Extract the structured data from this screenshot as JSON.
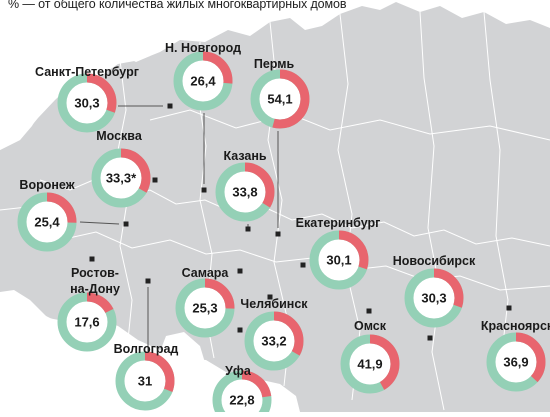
{
  "caption": "% — от общего количества жилых многоквартирных домов",
  "colors": {
    "land": "#d2d3d5",
    "land_border": "#ffffff",
    "water": "#ffffff",
    "ring_main": "#94d0b6",
    "ring_share": "#e8656e",
    "marker": "#222222",
    "leader": "#555555",
    "text": "#1a1a1a"
  },
  "cities": [
    {
      "id": "spb",
      "name": [
        "Санкт-Петербург"
      ],
      "value": "30,3",
      "share": 30.3
    },
    {
      "id": "nnov",
      "name": [
        "Н. Новгород"
      ],
      "value": "26,4",
      "share": 26.4
    },
    {
      "id": "perm",
      "name": [
        "Пермь"
      ],
      "value": "54,1",
      "share": 54.1
    },
    {
      "id": "msk",
      "name": [
        "Москва"
      ],
      "value": "33,3*",
      "share": 33.3
    },
    {
      "id": "kazan",
      "name": [
        "Казань"
      ],
      "value": "33,8",
      "share": 33.8
    },
    {
      "id": "vrn",
      "name": [
        "Воронеж"
      ],
      "value": "25,4",
      "share": 25.4
    },
    {
      "id": "ekb",
      "name": [
        "Екатеринбург"
      ],
      "value": "30,1",
      "share": 30.1
    },
    {
      "id": "nsk",
      "name": [
        "Новосибирск"
      ],
      "value": "30,3",
      "share": 30.3
    },
    {
      "id": "rnd",
      "name": [
        "Ростов-",
        "на-Дону"
      ],
      "value": "17,6",
      "share": 17.6
    },
    {
      "id": "samara",
      "name": [
        "Самара"
      ],
      "value": "25,3",
      "share": 25.3
    },
    {
      "id": "chel",
      "name": [
        "Челябинск"
      ],
      "value": "33,2",
      "share": 33.2
    },
    {
      "id": "omsk",
      "name": [
        "Омск"
      ],
      "value": "41,9",
      "share": 41.9
    },
    {
      "id": "krsk",
      "name": [
        "Красноярск"
      ],
      "value": "36,9",
      "share": 36.9
    },
    {
      "id": "vlg",
      "name": [
        "Волгоград"
      ],
      "value": "31",
      "share": 31
    },
    {
      "id": "ufa",
      "name": [
        "Уфа"
      ],
      "value": "22,8",
      "share": 22.8
    }
  ]
}
